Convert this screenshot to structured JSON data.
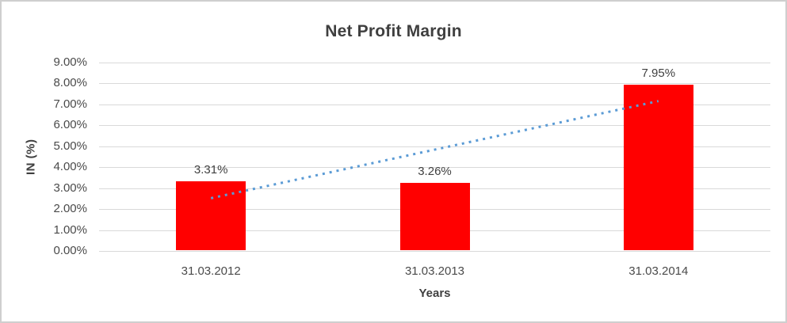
{
  "chart_data": {
    "type": "bar",
    "title": "Net Profit Margin",
    "xlabel": "Years",
    "ylabel": "IN (%)",
    "categories": [
      "31.03.2012",
      "31.03.2013",
      "31.03.2014"
    ],
    "values": [
      3.31,
      3.26,
      7.95
    ],
    "data_labels": [
      "3.31%",
      "3.26%",
      "7.95%"
    ],
    "y_tick_values": [
      0,
      1,
      2,
      3,
      4,
      5,
      6,
      7,
      8,
      9
    ],
    "y_tick_labels": [
      "0.00%",
      "1.00%",
      "2.00%",
      "3.00%",
      "4.00%",
      "5.00%",
      "6.00%",
      "7.00%",
      "8.00%",
      "9.00%"
    ],
    "ylim": [
      0,
      9
    ],
    "grid": true,
    "legend": false,
    "bar_color": "#ff0000",
    "gridline_color": "#d9d9d9",
    "trendline": {
      "style": "dotted",
      "color": "#5b9bd5",
      "start_value": 2.52,
      "end_value": 7.16
    }
  }
}
